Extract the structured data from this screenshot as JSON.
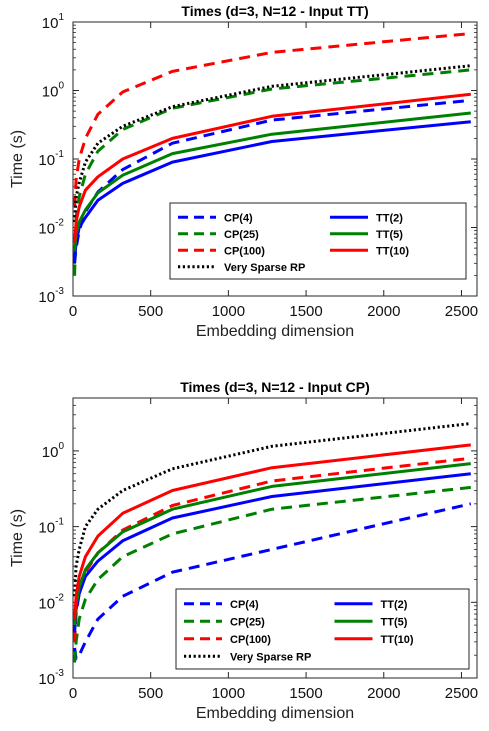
{
  "chart_data": [
    {
      "type": "line",
      "title": "Times (d=3, N=12 - Input TT)",
      "xlabel": "Embedding dimension",
      "ylabel": "Time (s)",
      "xlim": [
        0,
        2600
      ],
      "ylim": [
        0.001,
        10
      ],
      "yscale": "log",
      "xticks": [
        0,
        500,
        1000,
        1500,
        2000,
        2500
      ],
      "yticks": [
        {
          "value": 0.001,
          "label": "10",
          "exp": "-3"
        },
        {
          "value": 0.01,
          "label": "10",
          "exp": "-2"
        },
        {
          "value": 0.1,
          "label": "10",
          "exp": "-1"
        },
        {
          "value": 1,
          "label": "10",
          "exp": "0"
        },
        {
          "value": 10,
          "label": "10",
          "exp": "1"
        }
      ],
      "legend_position": "lower-right",
      "x": [
        10,
        20,
        40,
        80,
        160,
        320,
        640,
        1280,
        2560
      ],
      "series": [
        {
          "name": "CP(4)",
          "color": "#0000ff",
          "style": "dashed",
          "values": [
            0.003,
            0.005,
            0.009,
            0.017,
            0.033,
            0.07,
            0.17,
            0.37,
            0.72
          ]
        },
        {
          "name": "CP(25)",
          "color": "#008000",
          "style": "dashed",
          "values": [
            0.002,
            0.014,
            0.028,
            0.06,
            0.13,
            0.27,
            0.55,
            1.05,
            2.0
          ]
        },
        {
          "name": "CP(100)",
          "color": "#ff0000",
          "style": "dashed",
          "values": [
            0.02,
            0.05,
            0.1,
            0.2,
            0.45,
            0.95,
            1.9,
            3.6,
            6.8
          ]
        },
        {
          "name": "Very Sparse RP",
          "color": "#000000",
          "style": "dotted",
          "values": [
            0.012,
            0.028,
            0.045,
            0.09,
            0.17,
            0.3,
            0.58,
            1.15,
            2.3
          ]
        },
        {
          "name": "TT(2)",
          "color": "#0000ff",
          "style": "solid",
          "values": [
            0.0035,
            0.006,
            0.01,
            0.014,
            0.025,
            0.044,
            0.09,
            0.18,
            0.35
          ]
        },
        {
          "name": "TT(5)",
          "color": "#008000",
          "style": "solid",
          "values": [
            0.0045,
            0.008,
            0.012,
            0.018,
            0.032,
            0.058,
            0.12,
            0.23,
            0.47
          ]
        },
        {
          "name": "TT(10)",
          "color": "#ff0000",
          "style": "solid",
          "values": [
            0.006,
            0.012,
            0.02,
            0.035,
            0.055,
            0.1,
            0.2,
            0.42,
            0.88
          ]
        }
      ]
    },
    {
      "type": "line",
      "title": "Times (d=3, N=12 - Input CP)",
      "xlabel": "Embedding dimension",
      "ylabel": "Time (s)",
      "xlim": [
        0,
        2600
      ],
      "ylim": [
        0.001,
        5
      ],
      "yscale": "log",
      "xticks": [
        0,
        500,
        1000,
        1500,
        2000,
        2500
      ],
      "yticks": [
        {
          "value": 0.001,
          "label": "10",
          "exp": "-3"
        },
        {
          "value": 0.01,
          "label": "10",
          "exp": "-2"
        },
        {
          "value": 0.1,
          "label": "10",
          "exp": "-1"
        },
        {
          "value": 1,
          "label": "10",
          "exp": "0"
        }
      ],
      "legend_position": "lower-right",
      "x": [
        10,
        20,
        40,
        80,
        160,
        320,
        640,
        1280,
        2560
      ],
      "series": [
        {
          "name": "CP(4)",
          "color": "#0000ff",
          "style": "dashed",
          "values": [
            0.0025,
            0.0018,
            0.002,
            0.003,
            0.006,
            0.012,
            0.025,
            0.05,
            0.2
          ]
        },
        {
          "name": "CP(25)",
          "color": "#008000",
          "style": "dashed",
          "values": [
            0.0016,
            0.003,
            0.006,
            0.011,
            0.02,
            0.04,
            0.08,
            0.17,
            0.33
          ]
        },
        {
          "name": "CP(100)",
          "color": "#ff0000",
          "style": "dashed",
          "values": [
            0.003,
            0.007,
            0.013,
            0.025,
            0.045,
            0.09,
            0.19,
            0.4,
            0.8
          ]
        },
        {
          "name": "Very Sparse RP",
          "color": "#000000",
          "style": "dotted",
          "values": [
            0.012,
            0.03,
            0.05,
            0.1,
            0.17,
            0.3,
            0.58,
            1.15,
            2.3
          ]
        },
        {
          "name": "TT(2)",
          "color": "#0000ff",
          "style": "solid",
          "values": [
            0.004,
            0.008,
            0.013,
            0.022,
            0.035,
            0.065,
            0.13,
            0.25,
            0.5
          ]
        },
        {
          "name": "TT(5)",
          "color": "#008000",
          "style": "solid",
          "values": [
            0.005,
            0.009,
            0.016,
            0.027,
            0.045,
            0.085,
            0.17,
            0.34,
            0.68
          ]
        },
        {
          "name": "TT(10)",
          "color": "#ff0000",
          "style": "solid",
          "values": [
            0.006,
            0.012,
            0.022,
            0.04,
            0.075,
            0.15,
            0.3,
            0.6,
            1.2
          ]
        }
      ]
    }
  ]
}
